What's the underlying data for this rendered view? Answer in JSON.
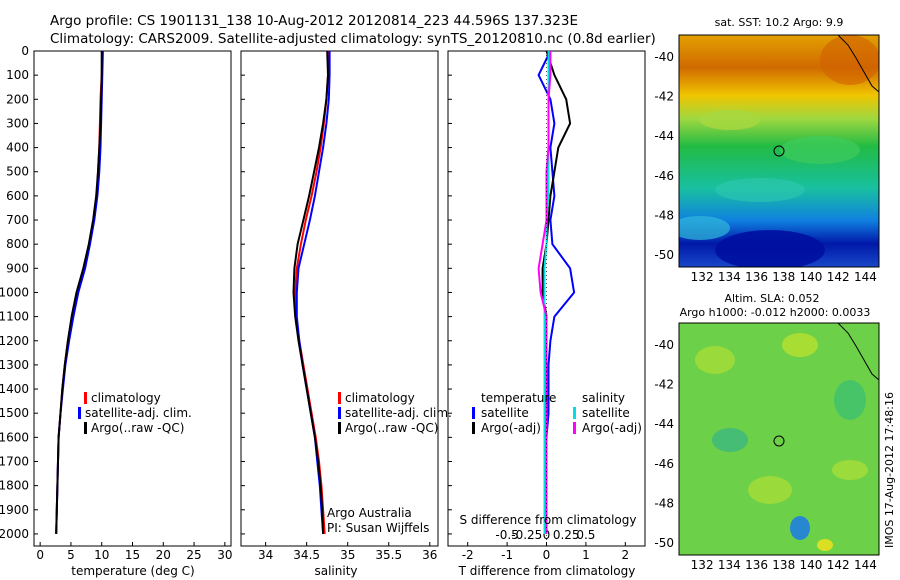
{
  "header": {
    "title_line1": "Argo profile: CS 1901131_138 10-Aug-2012 20120814_223 44.596S 137.323E",
    "title_line2": "Climatology: CARS2009. Satellite-adjusted climatology: synTS_20120810.nc (0.8d earlier)"
  },
  "colors": {
    "climatology": "#ff0000",
    "satellite": "#0000ff",
    "argo": "#000000",
    "sal_satellite": "#00e0e0",
    "sal_argo": "#ff00ff"
  },
  "depth_ticks": [
    "0",
    "100",
    "200",
    "300",
    "400",
    "500",
    "600",
    "700",
    "800",
    "900",
    "1000",
    "1100",
    "1200",
    "1300",
    "1400",
    "1500",
    "1600",
    "1700",
    "1800",
    "1900",
    "2000"
  ],
  "legend": {
    "climatology": "climatology",
    "satellite_clim": "satellite-adj. clim.",
    "argo": "Argo(..raw -QC)"
  },
  "diff_legend": {
    "temperature": "temperature",
    "salinity": "salinity",
    "satellite": "satellite",
    "argo": "Argo(-adj)"
  },
  "annotation": {
    "line1": "Argo Australia",
    "line2": "PI: Susan Wijffels"
  },
  "diff_s_label": "S difference from climatology",
  "maps": {
    "sst": {
      "title": "sat. SST: 10.2 Argo: 9.9"
    },
    "sla": {
      "title1": "Altim. SLA: 0.052",
      "title2": "Argo h1000: -0.012 h2000: 0.0033"
    },
    "lat_ticks": [
      "-40",
      "-42",
      "-44",
      "-46",
      "-48",
      "-50"
    ],
    "lon_ticks": [
      "132",
      "134",
      "136",
      "138",
      "140",
      "142",
      "144"
    ],
    "float_marker": {
      "lon": 137.323,
      "lat": -44.596
    }
  },
  "watermark": "IMOS 17-Aug-2012 17:48:16",
  "chart_data": [
    {
      "type": "line",
      "name": "temperature",
      "xlabel": "temperature (deg C)",
      "ylabel": "",
      "xlim": [
        -1,
        31
      ],
      "ylim": [
        0,
        2050
      ],
      "xticks": [
        "0",
        "5",
        "10",
        "15",
        "20",
        "25",
        "30"
      ],
      "depth": [
        0,
        100,
        200,
        300,
        400,
        500,
        600,
        700,
        800,
        900,
        1000,
        1100,
        1200,
        1300,
        1400,
        1500,
        1600,
        1700,
        1800,
        1900,
        2000
      ],
      "series": [
        {
          "name": "climatology",
          "values": [
            10.1,
            10.0,
            9.8,
            9.7,
            9.6,
            9.4,
            9.2,
            8.7,
            8.0,
            7.1,
            6.0,
            5.2,
            4.5,
            4.0,
            3.6,
            3.3,
            3.0,
            2.9,
            2.8,
            2.7,
            2.6
          ]
        },
        {
          "name": "satellite-adj. clim.",
          "values": [
            10.2,
            10.1,
            10.0,
            9.9,
            9.8,
            9.6,
            9.3,
            8.8,
            8.1,
            7.3,
            6.2,
            5.4,
            4.7,
            4.1,
            3.7,
            3.3,
            3.0,
            2.9,
            2.8,
            2.7,
            2.6
          ]
        },
        {
          "name": "Argo(..raw -QC)",
          "values": [
            10.0,
            10.0,
            9.9,
            9.8,
            9.6,
            9.4,
            9.1,
            8.6,
            7.9,
            7.0,
            5.9,
            5.1,
            4.5,
            4.0,
            3.6,
            3.3,
            3.0,
            2.9,
            2.8,
            2.7,
            2.6
          ]
        }
      ]
    },
    {
      "type": "line",
      "name": "salinity",
      "xlabel": "salinity",
      "ylabel": "",
      "xlim": [
        33.7,
        36.1
      ],
      "ylim": [
        0,
        2050
      ],
      "xticks": [
        "34",
        "34.5",
        "35",
        "35.5",
        "36"
      ],
      "depth": [
        0,
        100,
        200,
        300,
        400,
        500,
        600,
        700,
        800,
        900,
        1000,
        1100,
        1200,
        1300,
        1400,
        1500,
        1600,
        1700,
        1800,
        1900,
        2000
      ],
      "series": [
        {
          "name": "climatology",
          "values": [
            34.76,
            34.76,
            34.74,
            34.71,
            34.67,
            34.62,
            34.56,
            34.49,
            34.43,
            34.38,
            34.36,
            34.37,
            34.41,
            34.46,
            34.51,
            34.56,
            34.61,
            34.65,
            34.68,
            34.7,
            34.72
          ]
        },
        {
          "name": "satellite-adj. clim.",
          "values": [
            34.78,
            34.78,
            34.77,
            34.74,
            34.7,
            34.65,
            34.6,
            34.54,
            34.47,
            34.4,
            34.38,
            34.38,
            34.41,
            34.45,
            34.5,
            34.55,
            34.6,
            34.63,
            34.66,
            34.68,
            34.7
          ]
        },
        {
          "name": "Argo(..raw -QC)",
          "values": [
            34.75,
            34.76,
            34.74,
            34.7,
            34.65,
            34.59,
            34.53,
            34.46,
            34.39,
            34.35,
            34.34,
            34.36,
            34.4,
            34.45,
            34.5,
            34.55,
            34.6,
            34.64,
            34.67,
            34.69,
            34.7
          ]
        }
      ]
    },
    {
      "type": "line",
      "name": "differences",
      "xlabel": "T difference from climatology",
      "ylabel": "",
      "xlim": [
        -2.5,
        2.5
      ],
      "ylim": [
        0,
        2050
      ],
      "xticks": [
        "-2",
        "-1",
        "0",
        "1",
        "2"
      ],
      "s_ticks": [
        "-0.5",
        "-0.25",
        "0",
        "0.25",
        "0.5"
      ],
      "depth": [
        0,
        100,
        200,
        300,
        400,
        500,
        600,
        700,
        800,
        900,
        1000,
        1100,
        1200,
        1300,
        1400,
        1500,
        1600,
        1700,
        1800,
        1900,
        2000
      ],
      "series": [
        {
          "name": "temperature satellite",
          "values": [
            0.1,
            -0.2,
            0.1,
            0.2,
            0.1,
            0.15,
            0.2,
            0.1,
            0.15,
            0.6,
            0.7,
            0.2,
            0.1,
            0.05,
            0.05,
            0.05,
            0.0,
            0.0,
            0.0,
            0.0,
            0.0
          ]
        },
        {
          "name": "temperature Argo(-adj)",
          "values": [
            0.0,
            0.2,
            0.5,
            0.6,
            0.3,
            0.2,
            0.1,
            0.05,
            0.0,
            -0.1,
            -0.1,
            0.0,
            0.0,
            0.0,
            0.0,
            0.0,
            0.0,
            0.0,
            0.0,
            0.0,
            0.0
          ]
        },
        {
          "name": "salinity satellite",
          "values": [
            0.05,
            0.05,
            0.05,
            0.05,
            0.05,
            0.05,
            0.05,
            0.0,
            0.0,
            -0.05,
            -0.05,
            -0.05,
            -0.05,
            -0.05,
            -0.05,
            -0.05,
            -0.05,
            -0.05,
            -0.05,
            -0.05,
            -0.05
          ]
        },
        {
          "name": "salinity Argo(-adj)",
          "values": [
            0.1,
            0.1,
            0.05,
            0.05,
            0.05,
            0.0,
            0.0,
            0.0,
            -0.1,
            -0.2,
            -0.15,
            0.0,
            0.0,
            0.0,
            0.0,
            0.0,
            0.0,
            0.0,
            0.0,
            0.0,
            0.0
          ]
        }
      ]
    }
  ]
}
